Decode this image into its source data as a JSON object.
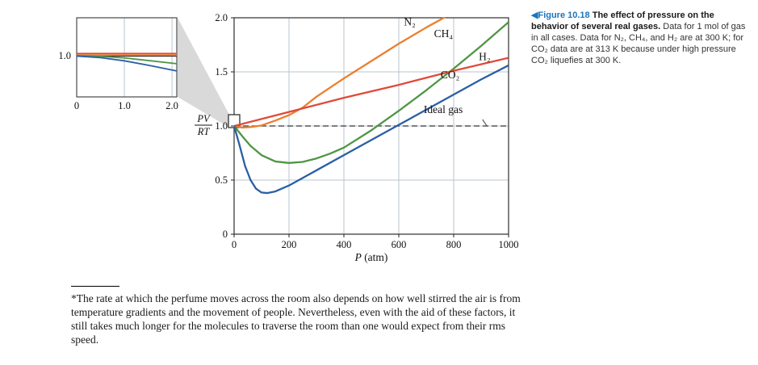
{
  "figure": {
    "caption": {
      "arrow": "◀",
      "label": "Figure 10.18",
      "label_color": "#1b75bc",
      "bold_text": "The effect of pressure on the behavior of several real gases.",
      "body_text": "Data for 1 mol of gas in all cases. Data for N₂, CH₄, and H₂ are at 300 K; for CO₂ data are at 313 K because under high pressure CO₂ liquefies at 300 K."
    }
  },
  "footnote": {
    "text": "*The rate at which the perfume moves across the room also depends on how well stirred the air is from temperature gradients and the movement of people. Nevertheless, even with the aid of these factors, it still takes much longer for the molecules to traverse the room than one would expect from their rms speed."
  },
  "chart_data": {
    "type": "line",
    "title": "",
    "xlabel": "P (atm)",
    "xlabel_var": "P",
    "xlabel_unit": "(atm)",
    "ylabel": "PV/RT",
    "ylabel_fraction": {
      "numerator": "PV",
      "denominator": "RT"
    },
    "xlim": [
      0,
      1000
    ],
    "ylim": [
      0,
      2
    ],
    "xticks": [
      "0",
      "200",
      "400",
      "600",
      "800",
      "1000"
    ],
    "yticks": [
      "0",
      "0.5",
      "1.0",
      "1.5",
      "2.0"
    ],
    "grid": true,
    "legend_position": "inline-labels",
    "series": [
      {
        "name": "N₂",
        "color": "#ec7f2f",
        "x": [
          0,
          30,
          60,
          100,
          150,
          200,
          250,
          300,
          400,
          500,
          600,
          700,
          800
        ],
        "y": [
          1.0,
          0.985,
          0.99,
          1.005,
          1.05,
          1.1,
          1.17,
          1.27,
          1.44,
          1.6,
          1.76,
          1.91,
          2.05
        ],
        "label_at": [
          640,
          1.93
        ]
      },
      {
        "name": "CH₄",
        "color": "#4f9643",
        "x": [
          0,
          30,
          60,
          100,
          150,
          200,
          250,
          300,
          350,
          400,
          500,
          600,
          700,
          800,
          900,
          1000
        ],
        "y": [
          1.0,
          0.905,
          0.815,
          0.73,
          0.672,
          0.658,
          0.668,
          0.7,
          0.745,
          0.8,
          0.96,
          1.14,
          1.33,
          1.53,
          1.74,
          1.96
        ],
        "label_at": [
          763,
          1.82
        ]
      },
      {
        "name": "H₂",
        "color": "#e04a3a",
        "x": [
          0,
          200,
          400,
          600,
          800,
          1000
        ],
        "y": [
          1.0,
          1.13,
          1.26,
          1.38,
          1.51,
          1.63
        ],
        "label_at": [
          913,
          1.61
        ]
      },
      {
        "name": "CO₂",
        "color": "#2a5fa5",
        "x": [
          0,
          20,
          40,
          60,
          80,
          100,
          120,
          150,
          200,
          250,
          300,
          400,
          500,
          600,
          700,
          800,
          900,
          1000
        ],
        "y": [
          1.0,
          0.82,
          0.63,
          0.5,
          0.42,
          0.385,
          0.38,
          0.395,
          0.45,
          0.52,
          0.59,
          0.73,
          0.87,
          1.01,
          1.15,
          1.29,
          1.43,
          1.56
        ],
        "label_at": [
          787,
          1.44
        ]
      },
      {
        "name": "Ideal gas",
        "color": "#555555",
        "dashed": true,
        "x": [
          0,
          1000
        ],
        "y": [
          1,
          1
        ],
        "label_at": [
          762,
          1.12
        ],
        "leader": [
          [
            905,
            1.06
          ],
          [
            920,
            1.005
          ]
        ]
      }
    ],
    "inset": {
      "xlim": [
        0,
        2.1
      ],
      "ylim": [
        0.87,
        1.12
      ],
      "xticks": [
        "0",
        "1.0",
        "2.0"
      ],
      "ytick": "1.0",
      "series": [
        {
          "name": "Ideal",
          "color": "#222222",
          "x": [
            0,
            2.1
          ],
          "y": [
            1,
            1
          ],
          "width": 2.2
        },
        {
          "name": "N₂",
          "color": "#ec7f2f",
          "x": [
            0,
            2.1
          ],
          "y": [
            1.002,
            1.002
          ]
        },
        {
          "name": "CH₄",
          "color": "#4f9643",
          "x": [
            0,
            0.5,
            1.0,
            1.5,
            2.1
          ],
          "y": [
            1.0,
            0.998,
            0.993,
            0.985,
            0.975
          ]
        },
        {
          "name": "CO₂",
          "color": "#2a5fa5",
          "x": [
            0,
            0.5,
            1.0,
            1.5,
            2.1
          ],
          "y": [
            0.999,
            0.994,
            0.984,
            0.97,
            0.952
          ]
        },
        {
          "name": "H₂",
          "color": "#e04a3a",
          "x": [
            0,
            2.1
          ],
          "y": [
            1.007,
            1.007
          ]
        }
      ]
    }
  }
}
